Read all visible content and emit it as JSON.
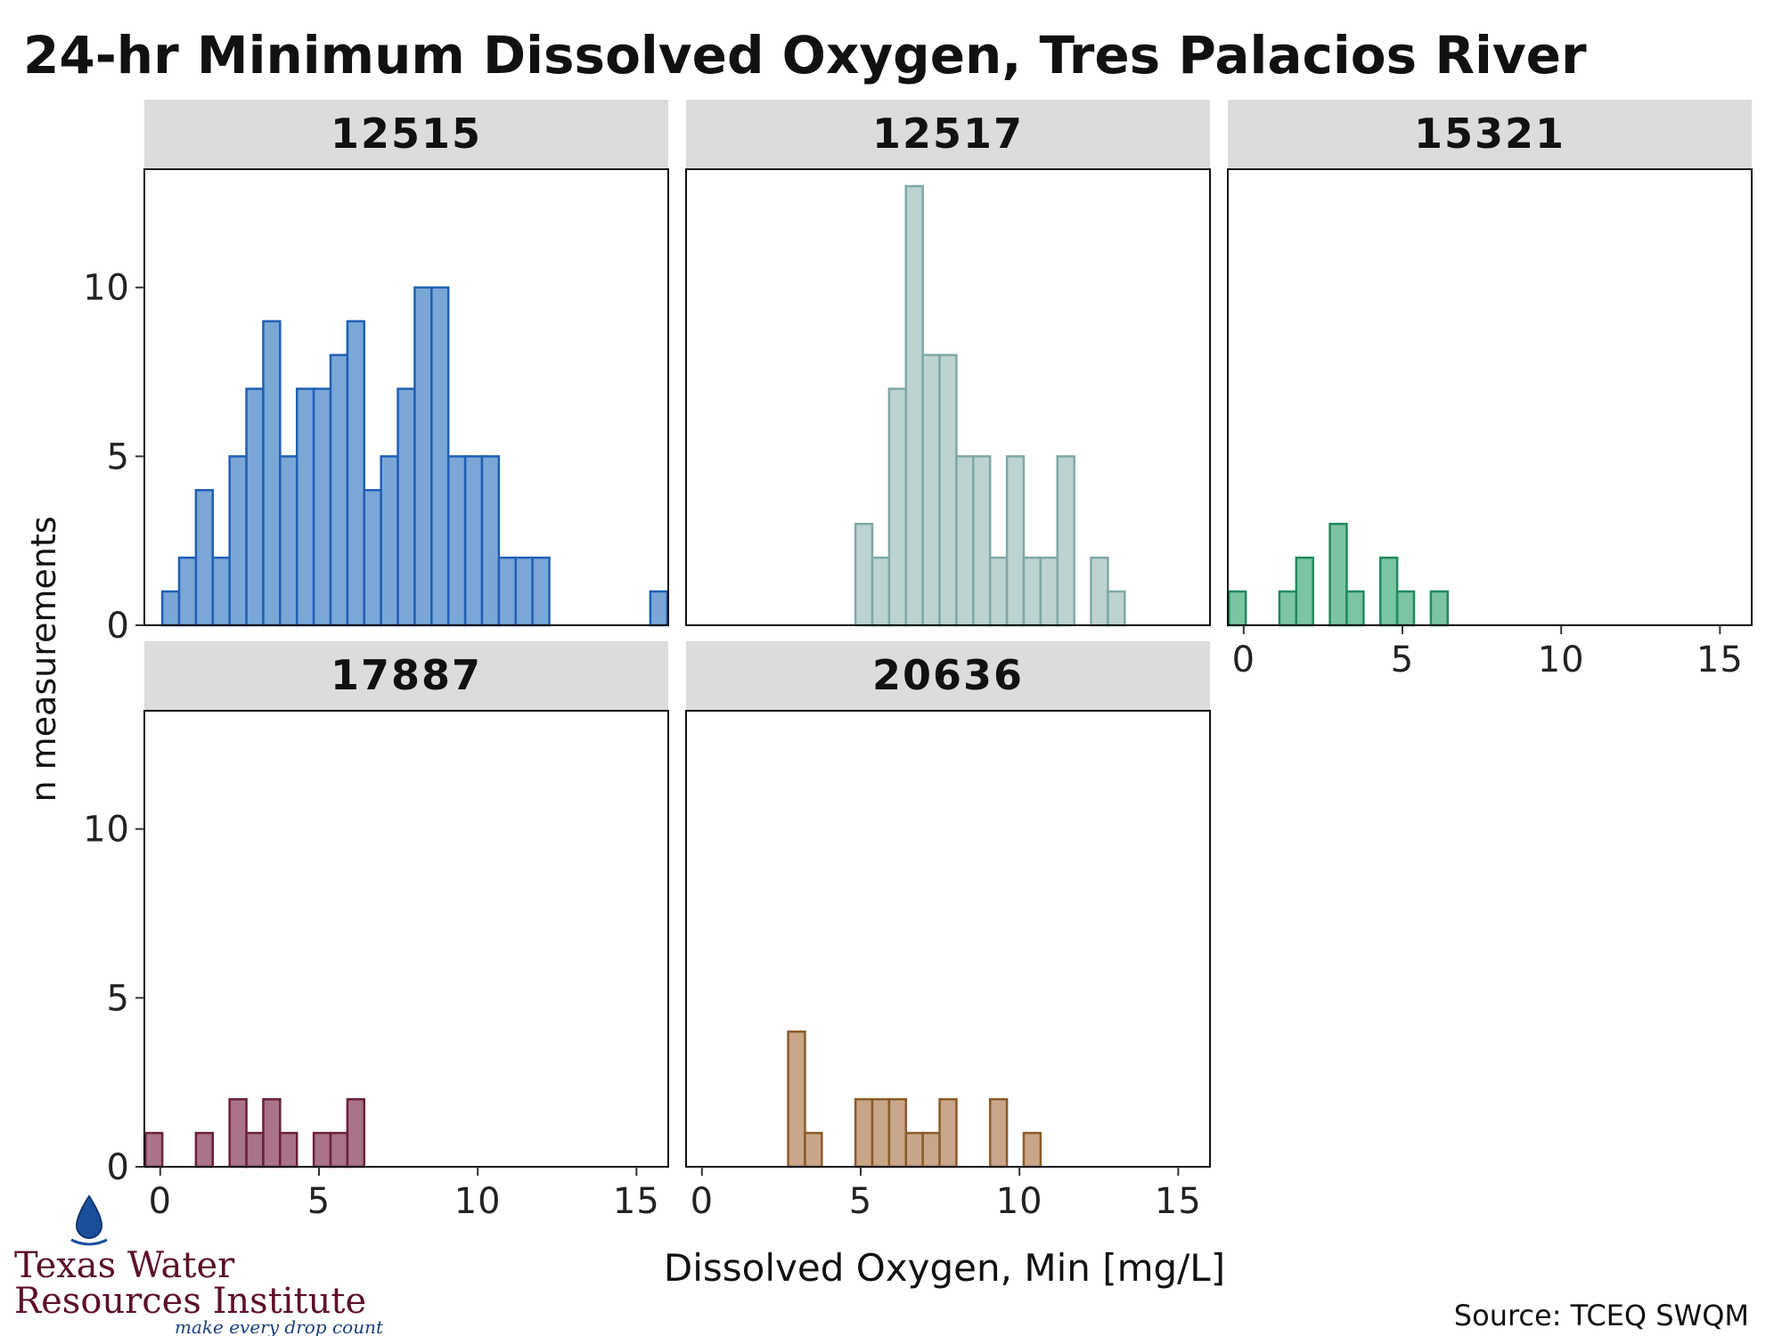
{
  "title": "24-hr Minimum Dissolved Oxygen, Tres Palacios River",
  "xlabel": "Dissolved Oxygen, Min [mg/L]",
  "ylabel": "n measurements",
  "source": "Source: TCEQ SWQM",
  "logo": {
    "line1": "Texas Water",
    "line2": "Resources Institute",
    "tagline": "make every drop count"
  },
  "chart_data": {
    "type": "bar",
    "xlim": [
      -0.5,
      16
    ],
    "ylim": [
      0,
      13.5
    ],
    "x_ticks": [
      0,
      5,
      10,
      15
    ],
    "y_ticks": [
      0,
      5,
      10
    ],
    "bin_width": 0.53,
    "bin_centers": [
      -0.2,
      0.33,
      0.86,
      1.39,
      1.92,
      2.45,
      2.98,
      3.51,
      4.04,
      4.57,
      5.1,
      5.63,
      6.16,
      6.69,
      7.22,
      7.75,
      8.28,
      8.81,
      9.34,
      9.87,
      10.4,
      10.93,
      11.46,
      11.99,
      12.52,
      13.05,
      13.58,
      14.11,
      14.64,
      15.17,
      15.7
    ],
    "panels": [
      {
        "name": "12515",
        "color": "#1f5fb5",
        "fill": "#7aa7d6",
        "counts": [
          0,
          1,
          2,
          4,
          2,
          5,
          7,
          9,
          5,
          7,
          7,
          8,
          9,
          4,
          5,
          7,
          10,
          10,
          5,
          5,
          5,
          2,
          2,
          2,
          0,
          0,
          0,
          0,
          0,
          0,
          1
        ]
      },
      {
        "name": "12517",
        "color": "#7fa8a5",
        "fill": "#bcd3d1",
        "counts": [
          0,
          0,
          0,
          0,
          0,
          0,
          0,
          0,
          0,
          0,
          3,
          2,
          7,
          13,
          8,
          8,
          5,
          5,
          2,
          5,
          2,
          2,
          5,
          0,
          2,
          1,
          0,
          0,
          0,
          0,
          0
        ]
      },
      {
        "name": "15321",
        "color": "#1f8a5e",
        "fill": "#7cc4a2",
        "counts": [
          1,
          0,
          0,
          1,
          2,
          0,
          3,
          1,
          0,
          2,
          1,
          0,
          1,
          0,
          0,
          0,
          0,
          0,
          0,
          0,
          0,
          0,
          0,
          0,
          0,
          0,
          0,
          0,
          0,
          0,
          0
        ]
      },
      {
        "name": "17887",
        "color": "#6b1f3a",
        "fill": "#a9738a",
        "counts": [
          1,
          0,
          0,
          1,
          0,
          2,
          1,
          2,
          1,
          0,
          1,
          1,
          2,
          0,
          0,
          0,
          0,
          0,
          0,
          0,
          0,
          0,
          0,
          0,
          0,
          0,
          0,
          0,
          0,
          0,
          0
        ]
      },
      {
        "name": "20636",
        "color": "#8a5a2a",
        "fill": "#c9a689",
        "counts": [
          0,
          0,
          0,
          0,
          0,
          0,
          4,
          1,
          0,
          0,
          2,
          2,
          2,
          1,
          1,
          2,
          0,
          0,
          2,
          0,
          1,
          0,
          0,
          0,
          0,
          0,
          0,
          0,
          0,
          0,
          0
        ]
      }
    ]
  }
}
